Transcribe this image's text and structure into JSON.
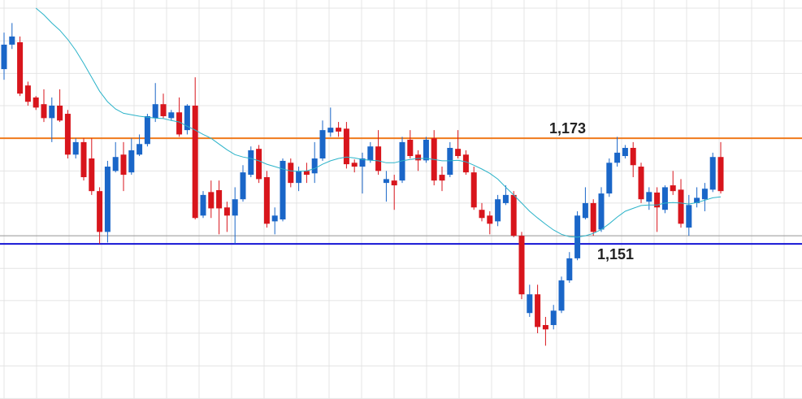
{
  "chart_data": {
    "type": "candlestick",
    "ylim": [
      1118.7,
      1201.8
    ],
    "yticks": [
      1200.1,
      1193.3,
      1186.5,
      1179.8,
      1173.0,
      1166.2,
      1159.5,
      1152.7,
      1145.9,
      1139.2,
      1132.4,
      1125.6,
      1118.8
    ],
    "grid": true,
    "up_color": "#1a66c8",
    "down_color": "#d8151c",
    "ohlc": [
      [
        1187.4,
        1195.0,
        1185.2,
        1192.5
      ],
      [
        1192.5,
        1197.0,
        1191.6,
        1194.2
      ],
      [
        1193.0,
        1194.2,
        1181.8,
        1182.3
      ],
      [
        1184.0,
        1184.8,
        1179.8,
        1180.6
      ],
      [
        1181.5,
        1181.8,
        1178.9,
        1179.4
      ],
      [
        1180.1,
        1183.2,
        1176.4,
        1177.2
      ],
      [
        1177.2,
        1181.5,
        1172.2,
        1179.8
      ],
      [
        1179.8,
        1183.2,
        1176.4,
        1176.7
      ],
      [
        1178.1,
        1178.9,
        1168.8,
        1169.6
      ],
      [
        1169.6,
        1173.0,
        1168.8,
        1172.2
      ],
      [
        1172.2,
        1173.0,
        1164.2,
        1164.9
      ],
      [
        1168.8,
        1173.0,
        1161.2,
        1162.0
      ],
      [
        1162.0,
        1162.8,
        1151.0,
        1153.5
      ],
      [
        1153.5,
        1168.3,
        1151.3,
        1167.1
      ],
      [
        1166.2,
        1172.2,
        1165.9,
        1169.1
      ],
      [
        1169.6,
        1172.2,
        1162.0,
        1165.4
      ],
      [
        1165.9,
        1173.0,
        1165.4,
        1170.5
      ],
      [
        1169.6,
        1173.8,
        1169.3,
        1171.8
      ],
      [
        1171.8,
        1178.1,
        1171.3,
        1177.6
      ],
      [
        1177.2,
        1184.5,
        1176.4,
        1180.1
      ],
      [
        1180.1,
        1182.3,
        1177.2,
        1177.6
      ],
      [
        1177.2,
        1178.9,
        1176.7,
        1178.4
      ],
      [
        1178.4,
        1181.5,
        1173.3,
        1173.8
      ],
      [
        1174.7,
        1180.1,
        1173.8,
        1179.8
      ],
      [
        1179.8,
        1185.7,
        1156.1,
        1156.4
      ],
      [
        1156.9,
        1162.0,
        1156.4,
        1161.2
      ],
      [
        1161.8,
        1164.2,
        1156.4,
        1158.4
      ],
      [
        1162.2,
        1164.2,
        1153.0,
        1158.4
      ],
      [
        1158.6,
        1159.8,
        1153.5,
        1156.9
      ],
      [
        1156.9,
        1162.8,
        1151.0,
        1160.3
      ],
      [
        1160.3,
        1167.4,
        1159.8,
        1165.9
      ],
      [
        1165.4,
        1171.3,
        1164.9,
        1170.5
      ],
      [
        1170.8,
        1171.6,
        1163.7,
        1164.5
      ],
      [
        1164.9,
        1166.2,
        1154.4,
        1155.2
      ],
      [
        1155.7,
        1158.6,
        1153.0,
        1156.9
      ],
      [
        1156.1,
        1168.8,
        1155.7,
        1168.3
      ],
      [
        1167.9,
        1168.8,
        1162.8,
        1163.7
      ],
      [
        1163.7,
        1167.1,
        1162.0,
        1166.2
      ],
      [
        1166.2,
        1167.9,
        1163.7,
        1165.4
      ],
      [
        1165.7,
        1172.2,
        1163.7,
        1168.8
      ],
      [
        1168.8,
        1176.7,
        1168.3,
        1174.7
      ],
      [
        1174.2,
        1179.4,
        1173.3,
        1175.2
      ],
      [
        1175.2,
        1176.4,
        1173.3,
        1174.4
      ],
      [
        1175.0,
        1176.4,
        1166.7,
        1167.6
      ],
      [
        1167.9,
        1168.6,
        1165.9,
        1167.1
      ],
      [
        1167.1,
        1170.0,
        1161.5,
        1168.8
      ],
      [
        1168.4,
        1172.2,
        1167.9,
        1171.3
      ],
      [
        1171.3,
        1174.7,
        1165.4,
        1166.2
      ],
      [
        1163.7,
        1166.2,
        1159.8,
        1164.5
      ],
      [
        1164.2,
        1165.4,
        1158.1,
        1163.2
      ],
      [
        1164.2,
        1173.3,
        1163.7,
        1172.2
      ],
      [
        1172.7,
        1174.7,
        1168.8,
        1169.3
      ],
      [
        1169.6,
        1170.5,
        1166.2,
        1168.4
      ],
      [
        1168.4,
        1173.3,
        1167.9,
        1172.7
      ],
      [
        1173.0,
        1174.7,
        1163.2,
        1164.2
      ],
      [
        1165.4,
        1167.1,
        1162.0,
        1164.2
      ],
      [
        1165.4,
        1172.2,
        1164.9,
        1171.0
      ],
      [
        1170.8,
        1174.7,
        1168.8,
        1169.3
      ],
      [
        1169.6,
        1170.5,
        1165.4,
        1165.9
      ],
      [
        1165.9,
        1167.1,
        1158.1,
        1158.6
      ],
      [
        1158.1,
        1159.5,
        1155.7,
        1156.4
      ],
      [
        1156.9,
        1157.8,
        1153.0,
        1155.2
      ],
      [
        1155.7,
        1161.2,
        1154.7,
        1160.3
      ],
      [
        1159.5,
        1163.2,
        1159.1,
        1161.2
      ],
      [
        1161.2,
        1162.0,
        1152.4,
        1152.7
      ],
      [
        1152.7,
        1153.5,
        1139.5,
        1140.5
      ],
      [
        1136.6,
        1142.5,
        1135.8,
        1140.5
      ],
      [
        1140.5,
        1142.5,
        1132.4,
        1133.7
      ],
      [
        1134.1,
        1135.8,
        1129.8,
        1133.2
      ],
      [
        1134.1,
        1138.3,
        1133.2,
        1137.1
      ],
      [
        1137.1,
        1144.2,
        1136.6,
        1143.4
      ],
      [
        1143.4,
        1149.3,
        1142.9,
        1148.0
      ],
      [
        1148.0,
        1157.8,
        1147.6,
        1156.9
      ],
      [
        1156.4,
        1162.8,
        1156.1,
        1159.5
      ],
      [
        1159.5,
        1160.3,
        1152.7,
        1153.5
      ],
      [
        1154.0,
        1162.8,
        1153.5,
        1161.5
      ],
      [
        1161.5,
        1168.8,
        1160.8,
        1167.9
      ],
      [
        1167.9,
        1173.3,
        1167.1,
        1170.0
      ],
      [
        1169.3,
        1171.6,
        1168.8,
        1171.0
      ],
      [
        1171.0,
        1172.2,
        1164.9,
        1167.4
      ],
      [
        1167.1,
        1167.9,
        1159.5,
        1160.3
      ],
      [
        1159.8,
        1162.8,
        1158.1,
        1161.8
      ],
      [
        1161.7,
        1162.8,
        1153.5,
        1158.6
      ],
      [
        1158.1,
        1163.2,
        1157.4,
        1162.8
      ],
      [
        1163.2,
        1166.2,
        1161.2,
        1162.0
      ],
      [
        1162.3,
        1164.5,
        1154.4,
        1155.2
      ],
      [
        1154.4,
        1161.2,
        1152.7,
        1159.1
      ],
      [
        1159.5,
        1162.8,
        1158.6,
        1160.6
      ],
      [
        1160.3,
        1163.7,
        1157.8,
        1162.5
      ],
      [
        1162.3,
        1170.0,
        1161.8,
        1169.1
      ],
      [
        1169.1,
        1172.2,
        1161.5,
        1162.0
      ]
    ],
    "moving_average": {
      "color": "#2bb3c9",
      "values": [
        null,
        null,
        null,
        null,
        1200.1,
        1198.7,
        1197.0,
        1195.5,
        1193.6,
        1191.3,
        1188.6,
        1185.7,
        1182.8,
        1180.6,
        1179.1,
        1178.2,
        1177.9,
        1177.6,
        1177.4,
        1177.2,
        1177.1,
        1176.7,
        1176.4,
        1175.5,
        1174.7,
        1173.8,
        1173.0,
        1171.8,
        1170.6,
        1169.6,
        1169.1,
        1168.8,
        1168.3,
        1167.6,
        1167.1,
        1166.6,
        1166.2,
        1166.1,
        1166.2,
        1166.7,
        1167.6,
        1168.3,
        1168.8,
        1169.1,
        1168.9,
        1168.6,
        1168.4,
        1168.3,
        1167.9,
        1167.9,
        1168.3,
        1168.6,
        1168.8,
        1168.8,
        1168.6,
        1168.3,
        1168.3,
        1168.4,
        1168.1,
        1167.4,
        1166.6,
        1165.7,
        1164.5,
        1162.8,
        1161.2,
        1159.5,
        1157.8,
        1156.4,
        1155.1,
        1153.9,
        1153.0,
        1152.5,
        1152.4,
        1152.7,
        1153.2,
        1154.0,
        1155.2,
        1156.6,
        1157.8,
        1158.4,
        1159.0,
        1159.1,
        1159.1,
        1159.5,
        1159.6,
        1159.5,
        1159.3,
        1159.6,
        1160.1,
        1160.6,
        1160.8
      ]
    },
    "levels": [
      {
        "value": 1152.7,
        "color": "#9a9a9a"
      },
      {
        "value": 1173,
        "label": "1,173",
        "color": "#f07a1c"
      },
      {
        "value": 1151,
        "label": "1,151",
        "color": "#1414d4"
      }
    ]
  }
}
